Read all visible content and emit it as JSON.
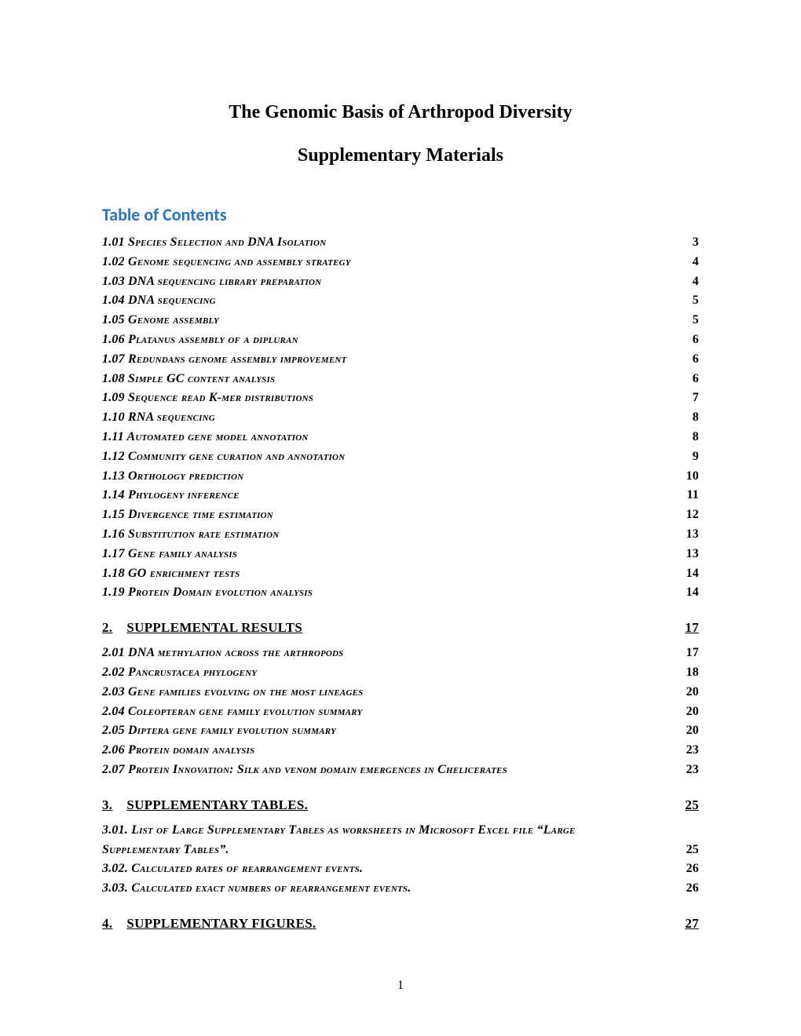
{
  "title": "The Genomic Basis of Arthropod Diversity",
  "subtitle": "Supplementary Materials",
  "toc_heading": "Table of Contents",
  "footer_page_number": "1",
  "section1": {
    "entries": [
      {
        "label": "1.01 Species Selection and DNA Isolation",
        "page": "3"
      },
      {
        "label": "1.02 Genome sequencing and assembly strategy",
        "page": "4"
      },
      {
        "label": "1.03 DNA sequencing library preparation",
        "page": "4"
      },
      {
        "label": "1.04 DNA sequencing",
        "page": "5"
      },
      {
        "label": "1.05 Genome assembly",
        "page": "5"
      },
      {
        "label": "1.06 Platanus assembly of a dipluran",
        "page": "6"
      },
      {
        "label": "1.07 Redundans genome assembly improvement",
        "page": "6"
      },
      {
        "label": "1.08 Simple GC content analysis",
        "page": "6"
      },
      {
        "label": "1.09 Sequence read K-mer distributions",
        "page": "7"
      },
      {
        "label": "1.10 RNA sequencing",
        "page": "8"
      },
      {
        "label": "1.11 Automated gene model annotation",
        "page": "8"
      },
      {
        "label": "1.12 Community gene curation and annotation",
        "page": "9"
      },
      {
        "label": "1.13 Orthology prediction",
        "page": "10"
      },
      {
        "label": "1.14 Phylogeny inference",
        "page": "11"
      },
      {
        "label": "1.15 Divergence time estimation",
        "page": "12"
      },
      {
        "label": "1.16 Substitution rate estimation",
        "page": "13"
      },
      {
        "label": "1.17 Gene family analysis",
        "page": "13"
      },
      {
        "label": "1.18 GO enrichment tests",
        "page": "14"
      },
      {
        "label": "1.19 Protein Domain evolution analysis",
        "page": "14"
      }
    ]
  },
  "section2": {
    "header_num": "2.",
    "header_text": "SUPPLEMENTAL RESULTS",
    "header_page": "17",
    "entries": [
      {
        "label": "2.01 DNA methylation across the arthropods",
        "page": "17"
      },
      {
        "label": "2.02 Pancrustacea phylogeny",
        "page": "18"
      },
      {
        "label": "2.03 Gene families evolving on the most lineages",
        "page": "20"
      },
      {
        "label": "2.04 Coleopteran gene family evolution summary",
        "page": "20"
      },
      {
        "label": "2.05 Diptera gene family evolution summary",
        "page": "20"
      },
      {
        "label": "2.06 Protein domain analysis",
        "page": "23"
      },
      {
        "label": "2.07 Protein Innovation: Silk and venom domain emergences in Chelicerates",
        "page": "23"
      }
    ]
  },
  "section3": {
    "header_num": "3.",
    "header_text": "SUPPLEMENTARY TABLES.",
    "header_page": "25",
    "wrap_entry": {
      "line1": "3.01. List of Large Supplementary Tables as worksheets in Microsoft Excel file “Large",
      "line2": "Supplementary Tables”.",
      "page": "25"
    },
    "entries": [
      {
        "label": "3.02. Calculated rates of rearrangement events.",
        "page": "26"
      },
      {
        "label": "3.03. Calculated exact numbers of rearrangement events.",
        "page": "26"
      }
    ]
  },
  "section4": {
    "header_num": "4.",
    "header_text": "SUPPLEMENTARY FIGURES.",
    "header_page": "27"
  }
}
